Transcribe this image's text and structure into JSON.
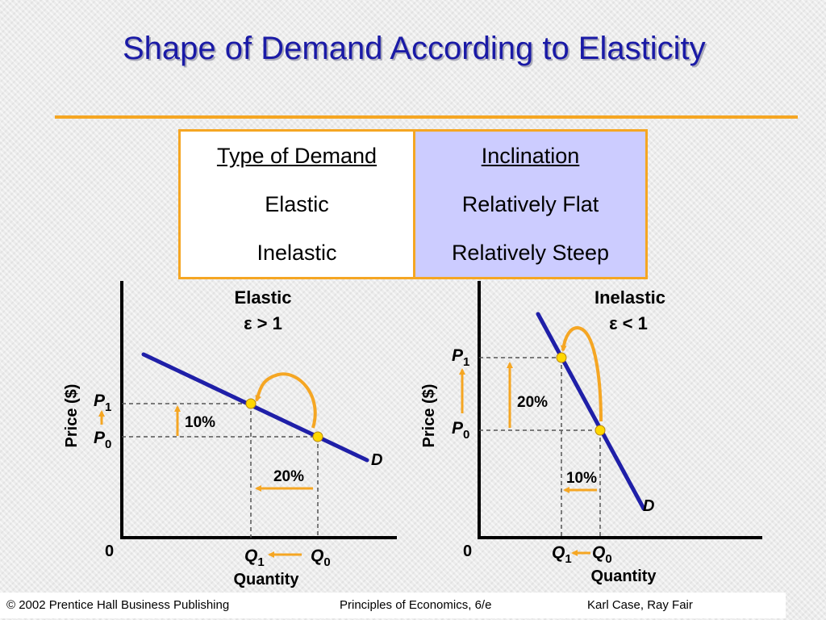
{
  "title": "Shape of Demand According to Elasticity",
  "table": {
    "header_type": "Type of Demand",
    "header_inclination": "Inclination",
    "rows": [
      {
        "type": "Elastic",
        "inclination": "Relatively Flat"
      },
      {
        "type": "Inelastic",
        "inclination": "Relatively Steep"
      }
    ]
  },
  "elastic_graph": {
    "title": "Elastic",
    "condition": "ε > 1",
    "price_axis": "Price ($)",
    "quantity_axis": "Quantity",
    "origin": "0",
    "p1": "P",
    "p1_sub": "1",
    "p0": "P",
    "p0_sub": "0",
    "q1": "Q",
    "q1_sub": "1",
    "q0": "Q",
    "q0_sub": "0",
    "price_change": "10%",
    "quantity_change": "20%",
    "curve_label": "D"
  },
  "inelastic_graph": {
    "title": "Inelastic",
    "condition": "ε < 1",
    "price_axis": "Price ($)",
    "quantity_axis": "Quantity",
    "origin": "0",
    "p1": "P",
    "p1_sub": "1",
    "p0": "P",
    "p0_sub": "0",
    "q1": "Q",
    "q1_sub": "1",
    "q0": "Q",
    "q0_sub": "0",
    "price_change": "20%",
    "quantity_change": "10%",
    "curve_label": "D"
  },
  "footer": {
    "copyright": "© 2002 Prentice Hall Business Publishing",
    "book": "Principles of Economics, 6/e",
    "authors": "Karl Case, Ray Fair"
  },
  "colors": {
    "title": "#1a1aa6",
    "accent": "#f5a623",
    "curve": "#1f1fa8",
    "point": "#ffd700",
    "table_highlight": "#ccccff"
  }
}
